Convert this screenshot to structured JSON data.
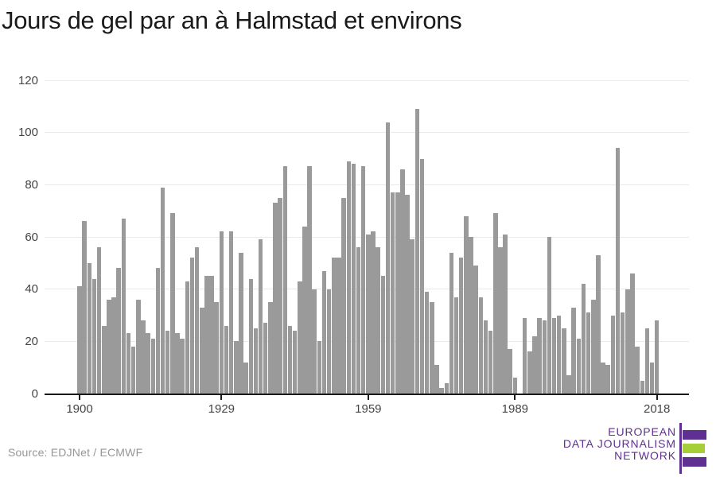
{
  "title": "Jours de gel par an à Halmstad et environs",
  "source_note": "Source: EDJNet / ECMWF",
  "colors": {
    "bar": "#9a9a9a",
    "gridline": "#e9e9e9",
    "axis_line": "#1a1a1a",
    "tick_label": "#444444",
    "title_text": "#1a1a1a",
    "source_text": "#969696",
    "logo_purple": "#5f2f91",
    "logo_green": "#a6ce39"
  },
  "logo": {
    "line1": "EUROPEAN",
    "line2": "DATA JOURNALISM",
    "line3": "NETWORK"
  },
  "chart_data": {
    "type": "bar",
    "title": "Jours de gel par an à Halmstad et environs",
    "xlabel": "",
    "ylabel": "",
    "series_name": "jours de gel",
    "x_start": 1900,
    "x_end": 2018,
    "xticks": [
      1900,
      1929,
      1959,
      1989,
      2018
    ],
    "yticks": [
      0,
      20,
      40,
      60,
      80,
      100,
      120
    ],
    "ylim": [
      0,
      120
    ],
    "grid": true,
    "legend_position": "none",
    "values": [
      41,
      66,
      50,
      44,
      56,
      26,
      36,
      37,
      48,
      67,
      23,
      18,
      36,
      28,
      23,
      21,
      48,
      79,
      24,
      69,
      23,
      21,
      43,
      52,
      56,
      33,
      45,
      45,
      35,
      62,
      26,
      62,
      20,
      54,
      12,
      44,
      25,
      59,
      27,
      35,
      73,
      75,
      87,
      26,
      24,
      43,
      64,
      87,
      40,
      20,
      47,
      40,
      52,
      52,
      75,
      89,
      88,
      56,
      87,
      61,
      62,
      56,
      45,
      104,
      77,
      77,
      86,
      76,
      59,
      109,
      90,
      39,
      35,
      11,
      2,
      4,
      54,
      37,
      52,
      68,
      60,
      49,
      37,
      28,
      24,
      69,
      56,
      61,
      17,
      6,
      0,
      29,
      16,
      22,
      29,
      28,
      60,
      29,
      30,
      25,
      7,
      33,
      21,
      42,
      31,
      36,
      53,
      12,
      11,
      30,
      94,
      31,
      40,
      46,
      18,
      5,
      25,
      12,
      28
    ]
  }
}
